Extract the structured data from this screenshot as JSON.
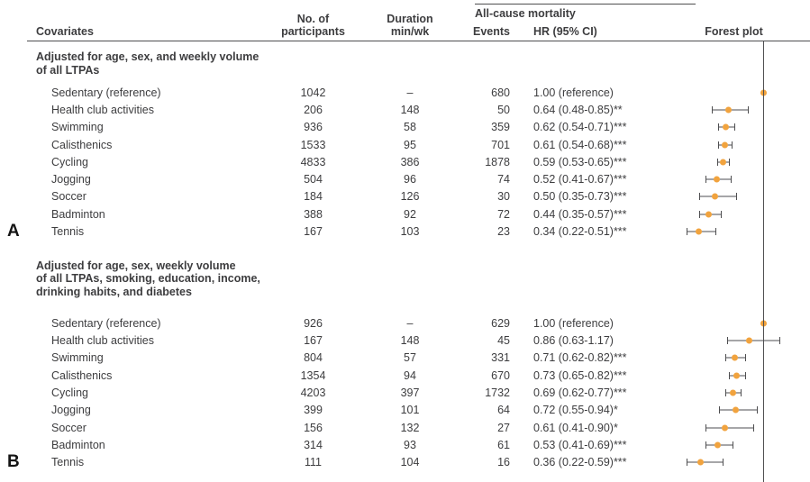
{
  "colors": {
    "text": "#3d3d3f",
    "rule": "#4e4e50",
    "marker": "#F1A33E"
  },
  "header": {
    "covariates": "Covariates",
    "participants": [
      "No. of",
      "participants"
    ],
    "duration": [
      "Duration",
      "min/wk"
    ],
    "spanner": "All-cause mortality",
    "events": "Events",
    "hr_ci": "HR (95% CI)",
    "forest_plot": "Forest plot"
  },
  "forest": {
    "reference_hr": 1.0
  },
  "panels": [
    {
      "label": "A",
      "title_lines": [
        "Adjusted for age, sex, and weekly volume",
        "of all LTPAs"
      ],
      "rows": [
        {
          "covariate": "Sedentary (reference)",
          "participants": "1042",
          "duration": "–",
          "events": "680",
          "hr_text": "1.00 (reference)",
          "hr": 1.0,
          "lo": null,
          "hi": null
        },
        {
          "covariate": "Health club activities",
          "participants": "206",
          "duration": "148",
          "events": "50",
          "hr_text": "0.64 (0.48-0.85)**",
          "hr": 0.64,
          "lo": 0.48,
          "hi": 0.85
        },
        {
          "covariate": "Swimming",
          "participants": "936",
          "duration": "58",
          "events": "359",
          "hr_text": "0.62 (0.54-0.71)***",
          "hr": 0.62,
          "lo": 0.54,
          "hi": 0.71
        },
        {
          "covariate": "Calisthenics",
          "participants": "1533",
          "duration": "95",
          "events": "701",
          "hr_text": "0.61 (0.54-0.68)***",
          "hr": 0.61,
          "lo": 0.54,
          "hi": 0.68
        },
        {
          "covariate": "Cycling",
          "participants": "4833",
          "duration": "386",
          "events": "1878",
          "hr_text": "0.59 (0.53-0.65)***",
          "hr": 0.59,
          "lo": 0.53,
          "hi": 0.65
        },
        {
          "covariate": "Jogging",
          "participants": "504",
          "duration": "96",
          "events": "74",
          "hr_text": "0.52 (0.41-0.67)***",
          "hr": 0.52,
          "lo": 0.41,
          "hi": 0.67
        },
        {
          "covariate": "Soccer",
          "participants": "184",
          "duration": "126",
          "events": "30",
          "hr_text": "0.50 (0.35-0.73)***",
          "hr": 0.5,
          "lo": 0.35,
          "hi": 0.73
        },
        {
          "covariate": "Badminton",
          "participants": "388",
          "duration": "92",
          "events": "72",
          "hr_text": "0.44 (0.35-0.57)***",
          "hr": 0.44,
          "lo": 0.35,
          "hi": 0.57
        },
        {
          "covariate": "Tennis",
          "participants": "167",
          "duration": "103",
          "events": "23",
          "hr_text": "0.34 (0.22-0.51)***",
          "hr": 0.34,
          "lo": 0.22,
          "hi": 0.51
        }
      ]
    },
    {
      "label": "B",
      "title_lines": [
        "Adjusted for age, sex, weekly volume",
        "of all LTPAs, smoking, education, income,",
        "drinking habits, and diabetes"
      ],
      "rows": [
        {
          "covariate": "Sedentary (reference)",
          "participants": "926",
          "duration": "–",
          "events": "629",
          "hr_text": "1.00 (reference)",
          "hr": 1.0,
          "lo": null,
          "hi": null
        },
        {
          "covariate": "Health club activities",
          "participants": "167",
          "duration": "148",
          "events": "45",
          "hr_text": "0.86 (0.63-1.17)",
          "hr": 0.86,
          "lo": 0.63,
          "hi": 1.17
        },
        {
          "covariate": "Swimming",
          "participants": "804",
          "duration": "57",
          "events": "331",
          "hr_text": "0.71 (0.62-0.82)***",
          "hr": 0.71,
          "lo": 0.62,
          "hi": 0.82
        },
        {
          "covariate": "Calisthenics",
          "participants": "1354",
          "duration": "94",
          "events": "670",
          "hr_text": "0.73 (0.65-0.82)***",
          "hr": 0.73,
          "lo": 0.65,
          "hi": 0.82
        },
        {
          "covariate": "Cycling",
          "participants": "4203",
          "duration": "397",
          "events": "1732",
          "hr_text": "0.69 (0.62-0.77)***",
          "hr": 0.69,
          "lo": 0.62,
          "hi": 0.77
        },
        {
          "covariate": "Jogging",
          "participants": "399",
          "duration": "101",
          "events": "64",
          "hr_text": "0.72 (0.55-0.94)*",
          "hr": 0.72,
          "lo": 0.55,
          "hi": 0.94
        },
        {
          "covariate": "Soccer",
          "participants": "156",
          "duration": "132",
          "events": "27",
          "hr_text": "0.61 (0.41-0.90)*",
          "hr": 0.61,
          "lo": 0.41,
          "hi": 0.9
        },
        {
          "covariate": "Badminton",
          "participants": "314",
          "duration": "93",
          "events": "61",
          "hr_text": "0.53 (0.41-0.69)***",
          "hr": 0.53,
          "lo": 0.41,
          "hi": 0.69
        },
        {
          "covariate": "Tennis",
          "participants": "111",
          "duration": "104",
          "events": "16",
          "hr_text": "0.36 (0.22-0.59)***",
          "hr": 0.36,
          "lo": 0.22,
          "hi": 0.59
        }
      ]
    }
  ],
  "chart_data": [
    {
      "type": "scatter",
      "subtype": "forest-plot",
      "panel": "A",
      "title": "Adjusted for age, sex, and weekly volume of all LTPAs",
      "xlabel": "HR (95% CI), all-cause mortality",
      "ylabel": "Covariates",
      "categories": [
        "Sedentary (reference)",
        "Health club activities",
        "Swimming",
        "Calisthenics",
        "Cycling",
        "Jogging",
        "Soccer",
        "Badminton",
        "Tennis"
      ],
      "series": [
        {
          "name": "No. of participants",
          "values": [
            1042,
            206,
            936,
            1533,
            4833,
            504,
            184,
            388,
            167
          ]
        },
        {
          "name": "Duration min/wk",
          "values": [
            null,
            148,
            58,
            95,
            386,
            96,
            126,
            92,
            103
          ]
        },
        {
          "name": "Events",
          "values": [
            680,
            50,
            359,
            701,
            1878,
            74,
            30,
            72,
            23
          ]
        },
        {
          "name": "HR",
          "values": [
            1.0,
            0.64,
            0.62,
            0.61,
            0.59,
            0.52,
            0.5,
            0.44,
            0.34
          ]
        },
        {
          "name": "CI lower",
          "values": [
            null,
            0.48,
            0.54,
            0.54,
            0.53,
            0.41,
            0.35,
            0.35,
            0.22
          ]
        },
        {
          "name": "CI upper",
          "values": [
            null,
            0.85,
            0.71,
            0.68,
            0.65,
            0.67,
            0.73,
            0.57,
            0.51
          ]
        }
      ],
      "significance": [
        "",
        "**",
        "***",
        "***",
        "***",
        "***",
        "***",
        "***",
        "***"
      ],
      "reference_line_x": 1.0,
      "xlim": [
        0.15,
        1.3
      ],
      "legend": "off",
      "grid": "off"
    },
    {
      "type": "scatter",
      "subtype": "forest-plot",
      "panel": "B",
      "title": "Adjusted for age, sex, weekly volume of all LTPAs, smoking, education, income, drinking habits, and diabetes",
      "xlabel": "HR (95% CI), all-cause mortality",
      "ylabel": "Covariates",
      "categories": [
        "Sedentary (reference)",
        "Health club activities",
        "Swimming",
        "Calisthenics",
        "Cycling",
        "Jogging",
        "Soccer",
        "Badminton",
        "Tennis"
      ],
      "series": [
        {
          "name": "No. of participants",
          "values": [
            926,
            167,
            804,
            1354,
            4203,
            399,
            156,
            314,
            111
          ]
        },
        {
          "name": "Duration min/wk",
          "values": [
            null,
            148,
            57,
            94,
            397,
            101,
            132,
            93,
            104
          ]
        },
        {
          "name": "Events",
          "values": [
            629,
            45,
            331,
            670,
            1732,
            64,
            27,
            61,
            16
          ]
        },
        {
          "name": "HR",
          "values": [
            1.0,
            0.86,
            0.71,
            0.73,
            0.69,
            0.72,
            0.61,
            0.53,
            0.36
          ]
        },
        {
          "name": "CI lower",
          "values": [
            null,
            0.63,
            0.62,
            0.65,
            0.62,
            0.55,
            0.41,
            0.41,
            0.22
          ]
        },
        {
          "name": "CI upper",
          "values": [
            null,
            1.17,
            0.82,
            0.82,
            0.77,
            0.94,
            0.9,
            0.69,
            0.59
          ]
        }
      ],
      "significance": [
        "",
        "",
        "***",
        "***",
        "***",
        "*",
        "*",
        "***",
        "***"
      ],
      "reference_line_x": 1.0,
      "xlim": [
        0.15,
        1.3
      ],
      "legend": "off",
      "grid": "off"
    }
  ]
}
